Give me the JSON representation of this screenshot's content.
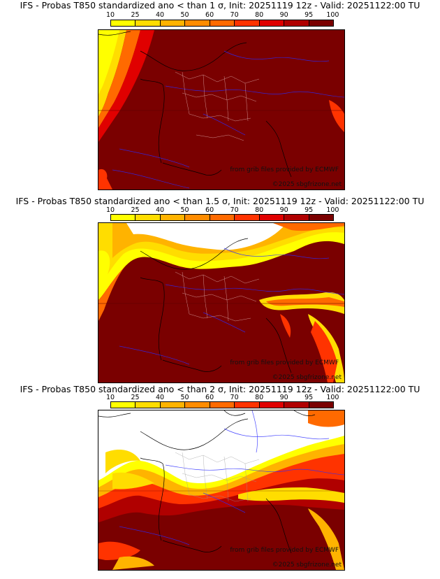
{
  "colorbar": {
    "ticks": [
      "10",
      "25",
      "40",
      "50",
      "60",
      "70",
      "80",
      "90",
      "95",
      "100"
    ],
    "colors": [
      "#ffff00",
      "#ffdd00",
      "#ffb300",
      "#ff8c00",
      "#ff6a00",
      "#ff3300",
      "#e00000",
      "#b00000",
      "#7a0000"
    ]
  },
  "panels": [
    {
      "title": "IFS - Probas T850  standardized ano < than 1 σ, Init: 20251119 12z - Valid: 20251122:00 TU",
      "credit_source": "from grib files provided by ECMWF",
      "credit_copyright": "©2025 sbgfrizone.net"
    },
    {
      "title": "IFS - Probas T850  standardized ano < than 1.5 σ, Init: 20251119 12z - Valid: 20251122:00 TU",
      "credit_source": "from grib files provided by ECMWF",
      "credit_copyright": "©2025 sbgfrizone.net"
    },
    {
      "title": "IFS - Probas T850  standardized ano < than 2 σ, Init: 20251119 12z - Valid: 20251122:00 TU",
      "credit_source": "from grib files provided by ECMWF",
      "credit_copyright": "©2025 sbgfrizone.net"
    }
  ]
}
